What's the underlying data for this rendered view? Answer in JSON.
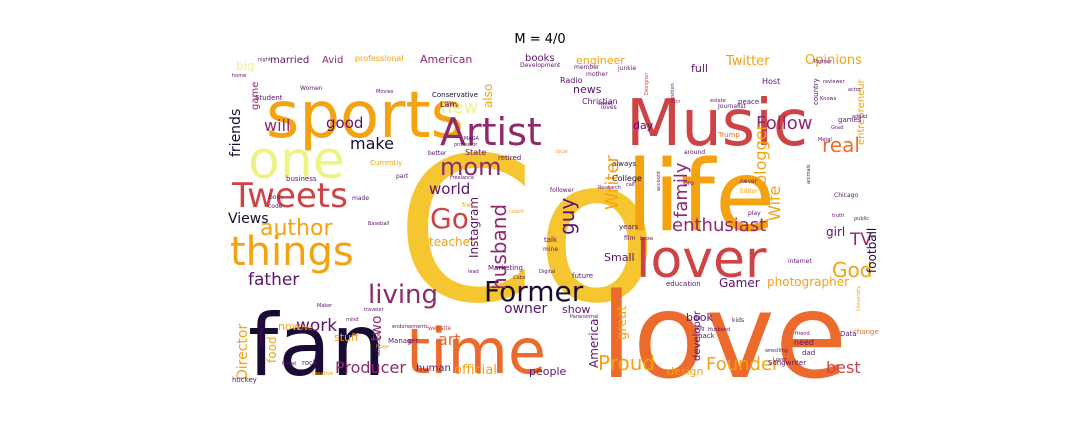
{
  "title": "M = 4/0",
  "palette": {
    "yellow": "#f5c630",
    "amber": "#f5a211",
    "orange": "#ec6a2c",
    "red": "#ce4345",
    "magenta": "#90286e",
    "purple": "#5d126e",
    "dark": "#1a0b35",
    "pale": "#eef388"
  },
  "words": [
    {
      "text": "Co",
      "color": "yellow"
    },
    {
      "text": "love",
      "color": "orange"
    },
    {
      "text": "fan",
      "color": "dark"
    },
    {
      "text": "life",
      "color": "amber"
    },
    {
      "text": "sports",
      "color": "amber"
    },
    {
      "text": "Music",
      "color": "red"
    },
    {
      "text": "time",
      "color": "orange"
    },
    {
      "text": "one",
      "color": "pale"
    },
    {
      "text": "lover",
      "color": "red"
    },
    {
      "text": "things",
      "color": "amber"
    },
    {
      "text": "Tweets",
      "color": "red"
    },
    {
      "text": "Artist",
      "color": "magenta"
    },
    {
      "text": "Former",
      "color": "dark"
    },
    {
      "text": "mom",
      "color": "magenta"
    },
    {
      "text": "living",
      "color": "magenta"
    },
    {
      "text": "author",
      "color": "amber"
    },
    {
      "text": "Go",
      "color": "red"
    },
    {
      "text": "husband",
      "color": "magenta"
    },
    {
      "text": "guy",
      "color": "purple"
    },
    {
      "text": "Writer",
      "color": "amber"
    },
    {
      "text": "family",
      "color": "magenta"
    },
    {
      "text": "real",
      "color": "orange"
    },
    {
      "text": "enthusiast",
      "color": "magenta"
    },
    {
      "text": "Follow",
      "color": "magenta"
    },
    {
      "text": "God",
      "color": "amber"
    },
    {
      "text": "Proud",
      "color": "amber"
    },
    {
      "text": "Founder",
      "color": "amber"
    },
    {
      "text": "Producer",
      "color": "magenta"
    },
    {
      "text": "best",
      "color": "red"
    },
    {
      "text": "Director",
      "color": "amber"
    },
    {
      "text": "father",
      "color": "purple"
    },
    {
      "text": "work",
      "color": "purple"
    },
    {
      "text": "art",
      "color": "orange"
    },
    {
      "text": "new",
      "color": "pale"
    },
    {
      "text": "will",
      "color": "magenta"
    },
    {
      "text": "good",
      "color": "purple"
    },
    {
      "text": "make",
      "color": "dark"
    },
    {
      "text": "world",
      "color": "purple"
    },
    {
      "text": "Views",
      "color": "dark"
    },
    {
      "text": "friends",
      "color": "dark"
    },
    {
      "text": "TV",
      "color": "magenta"
    },
    {
      "text": "Wife",
      "color": "amber"
    },
    {
      "text": "blogger",
      "color": "amber"
    },
    {
      "text": "owner",
      "color": "purple"
    },
    {
      "text": "two",
      "color": "magenta"
    },
    {
      "text": "teacher",
      "color": "amber"
    },
    {
      "text": "official",
      "color": "amber"
    },
    {
      "text": "America",
      "color": "purple"
    },
    {
      "text": "great",
      "color": "amber"
    },
    {
      "text": "Gamer",
      "color": "purple"
    },
    {
      "text": "photographer",
      "color": "amber"
    },
    {
      "text": "Instagram",
      "color": "purple"
    },
    {
      "text": "Opinions",
      "color": "amber"
    },
    {
      "text": "Twitter",
      "color": "amber"
    },
    {
      "text": "football",
      "color": "dark"
    },
    {
      "text": "girl",
      "color": "purple"
    },
    {
      "text": "design",
      "color": "amber"
    },
    {
      "text": "people",
      "color": "purple"
    },
    {
      "text": "books",
      "color": "purple"
    },
    {
      "text": "news",
      "color": "purple"
    },
    {
      "text": "also",
      "color": "amber"
    },
    {
      "text": "day",
      "color": "purple"
    },
    {
      "text": "American",
      "color": "magenta"
    },
    {
      "text": "engineer",
      "color": "amber"
    },
    {
      "text": "married",
      "color": "purple"
    },
    {
      "text": "Avid",
      "color": "magenta"
    },
    {
      "text": "big",
      "color": "pale"
    },
    {
      "text": "game",
      "color": "magenta"
    },
    {
      "text": "full",
      "color": "purple"
    },
    {
      "text": "entrepreneur",
      "color": "amber"
    },
    {
      "text": "food",
      "color": "amber"
    },
    {
      "text": "now",
      "color": "amber"
    },
    {
      "text": "stuff",
      "color": "amber"
    },
    {
      "text": "show",
      "color": "purple"
    },
    {
      "text": "Small",
      "color": "purple"
    },
    {
      "text": "book",
      "color": "purple"
    },
    {
      "text": "developer",
      "color": "purple"
    },
    {
      "text": "human",
      "color": "purple"
    },
    {
      "text": "professional",
      "color": "amber"
    },
    {
      "text": "Radio",
      "color": "purple"
    },
    {
      "text": "Christian",
      "color": "purple"
    },
    {
      "text": "Conservative",
      "color": "dark"
    },
    {
      "text": "retired",
      "color": "purple"
    },
    {
      "text": "State",
      "color": "purple"
    },
    {
      "text": "College",
      "color": "dark"
    },
    {
      "text": "always",
      "color": "dark"
    },
    {
      "text": "Host",
      "color": "purple"
    },
    {
      "text": "country",
      "color": "purple"
    },
    {
      "text": "peace",
      "color": "purple"
    },
    {
      "text": "games",
      "color": "purple"
    },
    {
      "text": "Chicago",
      "color": "purple"
    },
    {
      "text": "Student",
      "color": "purple"
    },
    {
      "text": "Women",
      "color": "purple"
    },
    {
      "text": "Currently",
      "color": "amber"
    },
    {
      "text": "business",
      "color": "purple"
    },
    {
      "text": "born",
      "color": "purple"
    },
    {
      "text": "code",
      "color": "purple"
    },
    {
      "text": "Marketing",
      "color": "purple"
    },
    {
      "text": "talk",
      "color": "purple"
    },
    {
      "text": "mine",
      "color": "purple"
    },
    {
      "text": "future",
      "color": "purple"
    },
    {
      "text": "years",
      "color": "purple"
    },
    {
      "text": "film",
      "color": "purple"
    },
    {
      "text": "education",
      "color": "purple"
    },
    {
      "text": "internet",
      "color": "purple"
    },
    {
      "text": "kids",
      "color": "purple"
    },
    {
      "text": "need",
      "color": "purple"
    },
    {
      "text": "dad",
      "color": "purple"
    },
    {
      "text": "Data",
      "color": "purple"
    },
    {
      "text": "change",
      "color": "orange"
    },
    {
      "text": "Songwriter",
      "color": "purple"
    },
    {
      "text": "hockey",
      "color": "purple"
    },
    {
      "text": "rock",
      "color": "purple"
    },
    {
      "text": "Manager",
      "color": "purple"
    },
    {
      "text": "website",
      "color": "red"
    },
    {
      "text": "Live",
      "color": "amber"
    },
    {
      "text": "back",
      "color": "purple"
    },
    {
      "text": "play",
      "color": "purple"
    },
    {
      "text": "Editor",
      "color": "amber"
    },
    {
      "text": "Trump",
      "color": "orange"
    },
    {
      "text": "Journalist",
      "color": "purple"
    },
    {
      "text": "Lam",
      "color": "purple"
    },
    {
      "text": "Development",
      "color": "purple"
    },
    {
      "text": "member",
      "color": "purple"
    },
    {
      "text": "junkie",
      "color": "purple"
    },
    {
      "text": "loves",
      "color": "purple"
    },
    {
      "text": "mother",
      "color": "purple"
    },
    {
      "text": "around",
      "color": "purple"
    },
    {
      "text": "pro",
      "color": "purple"
    },
    {
      "text": "never",
      "color": "purple"
    },
    {
      "text": "follower",
      "color": "purple"
    },
    {
      "text": "local",
      "color": "amber"
    },
    {
      "text": "better",
      "color": "purple"
    },
    {
      "text": "part",
      "color": "purple"
    },
    {
      "text": "made",
      "color": "purple"
    },
    {
      "text": "free",
      "color": "amber"
    },
    {
      "text": "coach",
      "color": "amber"
    },
    {
      "text": "lead",
      "color": "purple"
    },
    {
      "text": "Cubs",
      "color": "purple"
    },
    {
      "text": "Digital",
      "color": "purple"
    },
    {
      "text": "mind",
      "color": "purple"
    },
    {
      "text": "traveler",
      "color": "purple"
    },
    {
      "text": "Maker",
      "color": "purple"
    },
    {
      "text": "MAGA",
      "color": "purple"
    },
    {
      "text": "professor",
      "color": "purple"
    },
    {
      "text": "Movies",
      "color": "purple"
    },
    {
      "text": "Knows",
      "color": "purple"
    },
    {
      "text": "Partner",
      "color": "purple"
    },
    {
      "text": "reviewer",
      "color": "purple"
    },
    {
      "text": "actor",
      "color": "purple"
    },
    {
      "text": "animals",
      "color": "purple"
    },
    {
      "text": "truth",
      "color": "purple"
    },
    {
      "text": "public",
      "color": "purple"
    },
    {
      "text": "University",
      "color": "amber"
    },
    {
      "text": "Creative",
      "color": "amber"
    },
    {
      "text": "Huge",
      "color": "amber"
    },
    {
      "text": "community",
      "color": "purple"
    },
    {
      "text": "travel",
      "color": "purple"
    },
    {
      "text": "know",
      "color": "purple"
    },
    {
      "text": "dog",
      "color": "purple"
    },
    {
      "text": "Freelance",
      "color": "purple"
    },
    {
      "text": "advocate",
      "color": "purple"
    },
    {
      "text": "endorsements",
      "color": "purple"
    },
    {
      "text": "Metal",
      "color": "purple"
    },
    {
      "text": "home",
      "color": "purple"
    },
    {
      "text": "night",
      "color": "purple"
    },
    {
      "text": "Designer",
      "color": "red"
    },
    {
      "text": "position",
      "color": "purple"
    },
    {
      "text": "estate",
      "color": "purple"
    },
    {
      "text": "Nation",
      "color": "red"
    },
    {
      "text": "wrestling",
      "color": "purple"
    },
    {
      "text": "friend",
      "color": "purple"
    },
    {
      "text": "Grad",
      "color": "purple"
    },
    {
      "text": "Paranormal",
      "color": "purple"
    },
    {
      "text": "Husband",
      "color": "purple"
    },
    {
      "text": "Lover",
      "color": "purple"
    },
    {
      "text": "sweet",
      "color": "purple"
    },
    {
      "text": "addict",
      "color": "purple"
    },
    {
      "text": "Baseball",
      "color": "purple"
    },
    {
      "text": "call",
      "color": "purple"
    },
    {
      "text": "account",
      "color": "purple"
    },
    {
      "text": "Research",
      "color": "purple"
    }
  ]
}
